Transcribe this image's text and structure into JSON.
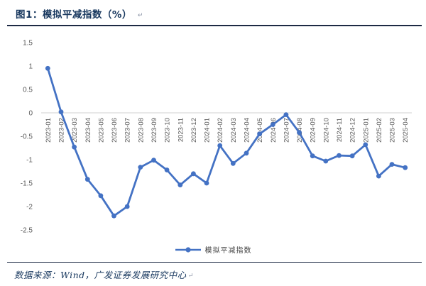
{
  "header": {
    "title": "图1：模拟平减指数（%）",
    "paragraph_mark": "↵"
  },
  "legend": {
    "label": "模拟平减指数"
  },
  "footer": {
    "source_text": "数据来源：Wind，广发证券发展研究中心",
    "paragraph_mark": "↵"
  },
  "colors": {
    "title_navy": "#17375E",
    "rule_navy": "#1d2a44",
    "series_blue": "#4472C4",
    "axis_label_gray": "#595959",
    "gridline_gray": "#D9D9D9",
    "legend_text": "#404040"
  },
  "chart_data": {
    "type": "line",
    "title": "模拟平减指数（%）",
    "series_name": "模拟平减指数",
    "categories": [
      "2023-01",
      "2023-02",
      "2023-03",
      "2023-04",
      "2023-05",
      "2023-06",
      "2023-07",
      "2023-08",
      "2023-09",
      "2023-10",
      "2023-11",
      "2023-12",
      "2024-01",
      "2024-02",
      "2024-03",
      "2024-04",
      "2024-05",
      "2024-06",
      "2024-07",
      "2024-08",
      "2024-09",
      "2024-10",
      "2024-11",
      "2024-12",
      "2025-01",
      "2025-02",
      "2025-03",
      "2025-04"
    ],
    "series": [
      {
        "name": "模拟平减指数",
        "values": [
          0.95,
          0.02,
          -0.73,
          -1.42,
          -1.77,
          -2.2,
          -2.0,
          -1.16,
          -1.01,
          -1.22,
          -1.54,
          -1.3,
          -1.5,
          -0.7,
          -1.08,
          -0.86,
          -0.45,
          -0.25,
          -0.04,
          -0.42,
          -0.92,
          -1.03,
          -0.91,
          -0.92,
          -0.68,
          -1.35,
          -1.1,
          -1.17
        ]
      }
    ],
    "ylim": [
      -2.5,
      1.5
    ],
    "yticks": [
      1.5,
      1,
      0.5,
      0,
      -0.5,
      -1,
      -1.5,
      -2,
      -2.5
    ],
    "grid": "zero-line-only",
    "x_label_rotation": -90,
    "legend_position": "bottom-center",
    "marker": "circle"
  }
}
